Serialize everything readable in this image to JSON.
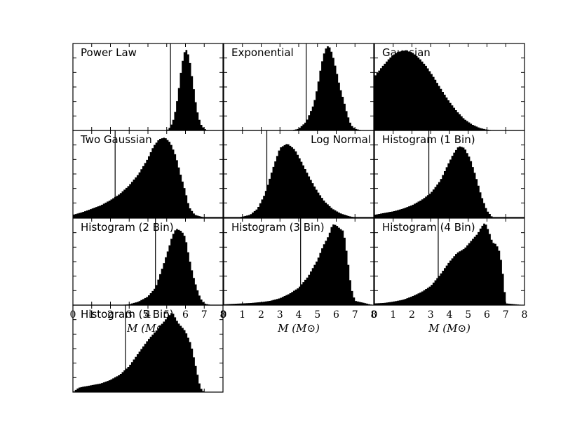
{
  "chart_data": {
    "type": "area",
    "grid": false,
    "panels": [
      {
        "title": "Power Law",
        "marker": 5.2,
        "curve": {
          "x": [
            0,
            5.0,
            5.2,
            5.4,
            5.6,
            5.8,
            6.0,
            6.2,
            6.4,
            6.6,
            6.8,
            7.0,
            7.2,
            7.6,
            8
          ],
          "y": [
            0,
            0,
            0.04,
            0.15,
            0.4,
            0.75,
            0.95,
            0.85,
            0.55,
            0.25,
            0.08,
            0.02,
            0,
            0,
            0
          ]
        }
      },
      {
        "title": "Exponential",
        "marker": 4.4,
        "curve": {
          "x": [
            0,
            3.6,
            4.0,
            4.4,
            4.8,
            5.0,
            5.2,
            5.4,
            5.6,
            5.8,
            6.0,
            6.2,
            6.4,
            6.6,
            6.8,
            7.0,
            7.4,
            8
          ],
          "y": [
            0,
            0,
            0.02,
            0.1,
            0.3,
            0.5,
            0.75,
            0.93,
            0.98,
            0.88,
            0.7,
            0.5,
            0.35,
            0.18,
            0.06,
            0.02,
            0,
            0
          ]
        }
      },
      {
        "title": "Gaussian",
        "marker": null,
        "curve": {
          "x": [
            0,
            0.4,
            0.8,
            1.2,
            1.6,
            2.0,
            2.4,
            2.8,
            3.2,
            3.6,
            4.0,
            4.4,
            4.8,
            5.2,
            5.6,
            6.0,
            6.4,
            6.8,
            7.2,
            7.6,
            8
          ],
          "y": [
            0.62,
            0.73,
            0.83,
            0.9,
            0.92,
            0.9,
            0.83,
            0.73,
            0.6,
            0.46,
            0.33,
            0.22,
            0.13,
            0.07,
            0.03,
            0.01,
            0,
            0,
            0,
            0,
            0
          ]
        }
      },
      {
        "title": "Two Gaussian",
        "marker": 2.25,
        "curve": {
          "x": [
            0,
            0.5,
            1.0,
            1.5,
            2.0,
            2.5,
            3.0,
            3.5,
            4.0,
            4.3,
            4.6,
            4.9,
            5.2,
            5.5,
            5.8,
            6.0,
            6.2,
            6.5,
            7.0,
            8
          ],
          "y": [
            0.03,
            0.06,
            0.1,
            0.14,
            0.2,
            0.27,
            0.37,
            0.5,
            0.68,
            0.82,
            0.9,
            0.92,
            0.86,
            0.7,
            0.45,
            0.3,
            0.12,
            0.03,
            0,
            0
          ]
        }
      },
      {
        "title": "Log Normal",
        "marker": 2.3,
        "curve": {
          "x": [
            0,
            0.8,
            1.4,
            1.8,
            2.2,
            2.6,
            3.0,
            3.4,
            3.8,
            4.2,
            4.6,
            5.0,
            5.4,
            5.8,
            6.2,
            6.6,
            7.0,
            7.5,
            8
          ],
          "y": [
            0,
            0,
            0.03,
            0.1,
            0.27,
            0.55,
            0.8,
            0.85,
            0.78,
            0.62,
            0.45,
            0.3,
            0.18,
            0.1,
            0.05,
            0.02,
            0,
            0,
            0
          ]
        }
      },
      {
        "title": "Histogram (1 Bin)",
        "marker": 2.9,
        "curve": {
          "x": [
            0,
            0.5,
            1.0,
            1.5,
            2.0,
            2.5,
            3.0,
            3.5,
            3.9,
            4.2,
            4.5,
            4.8,
            5.1,
            5.4,
            5.7,
            6.0,
            6.3,
            7.0,
            8
          ],
          "y": [
            0.03,
            0.05,
            0.07,
            0.1,
            0.14,
            0.2,
            0.28,
            0.42,
            0.6,
            0.73,
            0.82,
            0.8,
            0.68,
            0.48,
            0.25,
            0.08,
            0,
            0,
            0
          ]
        }
      },
      {
        "title": "Histogram (2 Bin)",
        "marker": 4.4,
        "curve": {
          "x": [
            0,
            2.5,
            3.0,
            3.5,
            4.0,
            4.4,
            4.8,
            5.1,
            5.3,
            5.5,
            5.8,
            6.0,
            6.2,
            6.4,
            6.6,
            6.8,
            7.0,
            7.4,
            8
          ],
          "y": [
            0,
            0,
            0.01,
            0.04,
            0.1,
            0.2,
            0.45,
            0.65,
            0.8,
            0.88,
            0.85,
            0.78,
            0.55,
            0.35,
            0.2,
            0.08,
            0.02,
            0,
            0
          ]
        }
      },
      {
        "title": "Histogram (3 Bin)",
        "marker": 4.1,
        "curve": {
          "x": [
            0,
            0.5,
            1.0,
            1.5,
            2.0,
            2.5,
            3.0,
            3.5,
            4.0,
            4.5,
            5.0,
            5.3,
            5.6,
            5.8,
            6.0,
            6.2,
            6.4,
            6.6,
            6.8,
            7.0,
            8
          ],
          "y": [
            0.01,
            0.015,
            0.02,
            0.025,
            0.035,
            0.05,
            0.08,
            0.13,
            0.2,
            0.33,
            0.52,
            0.68,
            0.8,
            0.93,
            0.92,
            0.88,
            0.85,
            0.55,
            0.2,
            0.05,
            0
          ]
        }
      },
      {
        "title": "Histogram (4 Bin)",
        "marker": 3.4,
        "curve": {
          "x": [
            0,
            0.5,
            1.0,
            1.5,
            2.0,
            2.5,
            3.0,
            3.5,
            4.0,
            4.4,
            4.8,
            5.2,
            5.5,
            5.7,
            5.9,
            6.1,
            6.3,
            6.5,
            6.7,
            6.9,
            7.0,
            8
          ],
          "y": [
            0.02,
            0.025,
            0.04,
            0.06,
            0.1,
            0.15,
            0.22,
            0.35,
            0.5,
            0.6,
            0.65,
            0.75,
            0.82,
            0.9,
            0.95,
            0.85,
            0.72,
            0.7,
            0.6,
            0.28,
            0.02,
            0
          ]
        }
      },
      {
        "title": "Histogram (5 Bin)",
        "marker": 2.8,
        "curve": {
          "x": [
            0,
            0.3,
            0.5,
            1.0,
            1.5,
            2.0,
            2.5,
            3.0,
            3.5,
            4.0,
            4.5,
            5.0,
            5.3,
            5.6,
            6.0,
            6.3,
            6.6,
            6.8,
            7.0,
            8
          ],
          "y": [
            0,
            0.05,
            0.06,
            0.08,
            0.1,
            0.14,
            0.2,
            0.3,
            0.45,
            0.6,
            0.72,
            0.85,
            0.92,
            0.8,
            0.7,
            0.55,
            0.25,
            0.05,
            0,
            0
          ]
        }
      }
    ],
    "x_axis": {
      "range": [
        0,
        8
      ],
      "ticks": [
        "0",
        "1",
        "2",
        "3",
        "4",
        "5",
        "6",
        "7",
        "8"
      ],
      "label": "M (M⊙)"
    }
  }
}
